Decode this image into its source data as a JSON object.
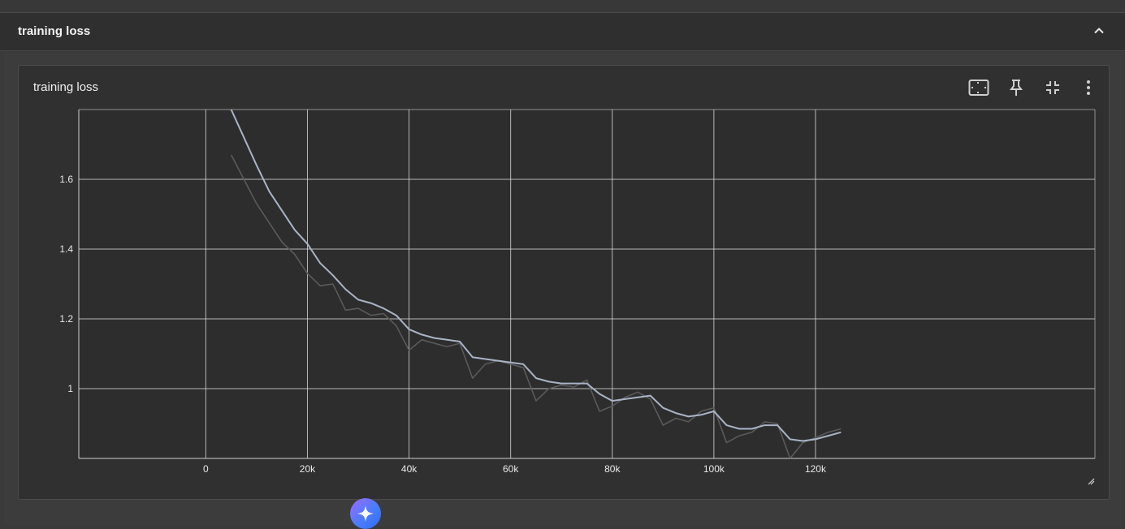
{
  "section": {
    "title": "training loss"
  },
  "card": {
    "title": "training loss"
  },
  "icons": {
    "collapse": "chevron-up-icon",
    "fit_domain": "fit-to-data-icon",
    "pin": "pin-icon",
    "fullscreen": "exit-fullscreen-icon",
    "more": "more-vert-icon",
    "resize": "resize-handle-icon",
    "assistant": "sparkle-icon"
  },
  "colors": {
    "smoothed_line": "#a9b4c6",
    "raw_line": "#5a5a5a",
    "grid": "#d0d0d0",
    "plot_bg": "#2d2d2d"
  },
  "chart_data": {
    "type": "line",
    "title": "",
    "xlabel": "",
    "ylabel": "",
    "xlim": [
      -25000,
      175000
    ],
    "ylim": [
      0.8,
      1.8
    ],
    "x_ticks": [
      0,
      20000,
      40000,
      60000,
      80000,
      100000,
      120000
    ],
    "x_tick_labels": [
      "0",
      "20k",
      "40k",
      "60k",
      "80k",
      "100k",
      "120k"
    ],
    "y_ticks": [
      1.0,
      1.2,
      1.4,
      1.6
    ],
    "y_tick_labels": [
      "1",
      "1.2",
      "1.4",
      "1.6"
    ],
    "grid": true,
    "legend": "none",
    "series": [
      {
        "role": "raw",
        "x": [
          5000,
          7500,
          10000,
          12500,
          15000,
          17500,
          20000,
          22500,
          25000,
          27500,
          30000,
          32500,
          35000,
          37500,
          40000,
          42500,
          45000,
          47500,
          50000,
          52500,
          55000,
          57500,
          60000,
          62500,
          65000,
          67500,
          70000,
          72500,
          75000,
          77500,
          80000,
          82500,
          85000,
          87500,
          90000,
          92500,
          95000,
          97500,
          100000,
          102500,
          105000,
          107500,
          110000,
          112500,
          115000,
          117500,
          120000,
          122500,
          125000
        ],
        "y": [
          1.67,
          1.6,
          1.53,
          1.475,
          1.42,
          1.385,
          1.33,
          1.295,
          1.3,
          1.225,
          1.23,
          1.21,
          1.215,
          1.18,
          1.11,
          1.14,
          1.13,
          1.12,
          1.13,
          1.03,
          1.07,
          1.08,
          1.07,
          1.06,
          0.965,
          1.0,
          1.01,
          1.005,
          1.025,
          0.935,
          0.95,
          0.975,
          0.99,
          0.97,
          0.895,
          0.915,
          0.905,
          0.935,
          0.945,
          0.845,
          0.865,
          0.875,
          0.905,
          0.9,
          0.8,
          0.845,
          0.86,
          0.875,
          0.885
        ]
      },
      {
        "role": "smoothed",
        "x": [
          5000,
          7500,
          10000,
          12500,
          15000,
          17500,
          20000,
          22500,
          25000,
          27500,
          30000,
          32500,
          35000,
          37500,
          40000,
          42500,
          45000,
          47500,
          50000,
          52500,
          55000,
          57500,
          60000,
          62500,
          65000,
          67500,
          70000,
          72500,
          75000,
          77500,
          80000,
          82500,
          85000,
          87500,
          90000,
          92500,
          95000,
          97500,
          100000,
          102500,
          105000,
          107500,
          110000,
          112500,
          115000,
          117500,
          120000,
          122500,
          125000
        ],
        "y": [
          1.8,
          1.72,
          1.64,
          1.565,
          1.51,
          1.455,
          1.415,
          1.36,
          1.325,
          1.285,
          1.255,
          1.245,
          1.23,
          1.21,
          1.17,
          1.155,
          1.145,
          1.14,
          1.135,
          1.09,
          1.085,
          1.08,
          1.075,
          1.07,
          1.03,
          1.02,
          1.015,
          1.015,
          1.015,
          0.985,
          0.965,
          0.97,
          0.975,
          0.98,
          0.945,
          0.93,
          0.92,
          0.925,
          0.935,
          0.895,
          0.885,
          0.885,
          0.895,
          0.895,
          0.855,
          0.85,
          0.855,
          0.865,
          0.875
        ]
      }
    ]
  }
}
